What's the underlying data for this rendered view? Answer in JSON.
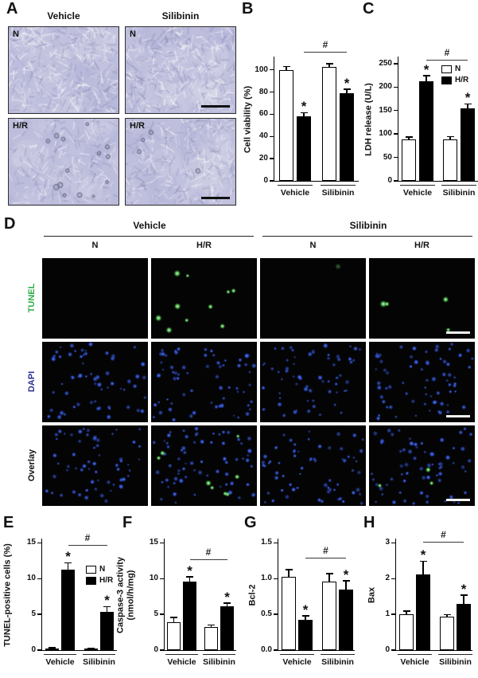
{
  "panels": {
    "A": {
      "letter": "A",
      "col_headers": [
        "Vehicle",
        "Silibinin"
      ],
      "images": [
        {
          "label": "N",
          "col": "Vehicle",
          "density": "confluent",
          "debris": 0,
          "scalebar": false
        },
        {
          "label": "N",
          "col": "Silibinin",
          "density": "confluent",
          "debris": 0,
          "scalebar": true
        },
        {
          "label": "H/R",
          "col": "Vehicle",
          "density": "sparse",
          "debris": 14,
          "scalebar": false
        },
        {
          "label": "H/R",
          "col": "Silibinin",
          "density": "medium",
          "debris": 4,
          "scalebar": true
        }
      ]
    },
    "B": {
      "letter": "B"
    },
    "C": {
      "letter": "C"
    },
    "D": {
      "letter": "D",
      "group_headers": [
        "Vehicle",
        "Silibinin"
      ],
      "col_subheaders": [
        "N",
        "H/R",
        "N",
        "H/R"
      ],
      "rows": [
        {
          "label": "TUNEL",
          "label_color": "#2fae4a",
          "cells": [
            {
              "green": 0,
              "blue": 0
            },
            {
              "green": 10,
              "blue": 0
            },
            {
              "green": 1,
              "blue": 0,
              "faint": true
            },
            {
              "green": 4,
              "blue": 0
            }
          ],
          "scalebar_last": true
        },
        {
          "label": "DAPI",
          "label_color": "#2e3192",
          "cells": [
            {
              "green": 0,
              "blue": 62
            },
            {
              "green": 0,
              "blue": 66
            },
            {
              "green": 0,
              "blue": 64
            },
            {
              "green": 0,
              "blue": 68
            }
          ],
          "scalebar_last": true
        },
        {
          "label": "Overlay",
          "label_color": "#111111",
          "cells": [
            {
              "green": 0,
              "blue": 62
            },
            {
              "green": 8,
              "blue": 66
            },
            {
              "green": 0,
              "blue": 64
            },
            {
              "green": 3,
              "blue": 68
            }
          ],
          "scalebar_last": true
        }
      ]
    },
    "E": {
      "letter": "E"
    },
    "F": {
      "letter": "F"
    },
    "G": {
      "letter": "G"
    },
    "H": {
      "letter": "H"
    }
  },
  "chart_data": [
    {
      "panel": "B",
      "type": "bar",
      "ylabel": "Cell viability (%)",
      "categories": [
        "Vehicle",
        "Silibinin"
      ],
      "series": [
        {
          "name": "N",
          "fill": "#ffffff",
          "values": [
            100,
            103
          ],
          "errors": [
            2.5,
            2
          ],
          "starred": [
            false,
            false
          ]
        },
        {
          "name": "H/R",
          "fill": "#000000",
          "values": [
            58,
            79
          ],
          "errors": [
            3,
            3
          ],
          "starred": [
            true,
            true
          ]
        }
      ],
      "ylim": [
        0,
        112
      ],
      "yticks": [
        0,
        20,
        40,
        60,
        80,
        100
      ],
      "ytick_labels": [
        "0",
        "20",
        "40",
        "60",
        "80",
        "100"
      ],
      "hash_comparison": true,
      "legend": false,
      "grid": false,
      "legend_position": "none"
    },
    {
      "panel": "C",
      "type": "bar",
      "ylabel": "LDH release (U/L)",
      "categories": [
        "Vehicle",
        "Silibinin"
      ],
      "series": [
        {
          "name": "N",
          "fill": "#ffffff",
          "values": [
            88,
            88
          ],
          "errors": [
            4,
            5
          ],
          "starred": [
            false,
            false
          ]
        },
        {
          "name": "H/R",
          "fill": "#000000",
          "values": [
            213,
            155
          ],
          "errors": [
            10,
            8
          ],
          "starred": [
            true,
            true
          ]
        }
      ],
      "ylim": [
        0,
        265
      ],
      "yticks": [
        0,
        50,
        100,
        150,
        200,
        250
      ],
      "ytick_labels": [
        "0",
        "50",
        "100",
        "150",
        "200",
        "250"
      ],
      "hash_comparison": true,
      "legend": true,
      "grid": false,
      "legend_position": "upper-right-inside"
    },
    {
      "panel": "E",
      "type": "bar",
      "ylabel": "TUNEL-positive cells (%)",
      "categories": [
        "Vehicle",
        "Silibinin"
      ],
      "series": [
        {
          "name": "N",
          "fill": "#ffffff",
          "values": [
            0.18,
            0.15
          ],
          "errors": [
            0.05,
            0.05
          ],
          "starred": [
            false,
            false
          ]
        },
        {
          "name": "H/R",
          "fill": "#000000",
          "values": [
            11.3,
            5.3
          ],
          "errors": [
            0.8,
            0.7
          ],
          "starred": [
            true,
            true
          ]
        }
      ],
      "ylim": [
        0,
        15.6
      ],
      "yticks": [
        0,
        5,
        10,
        15
      ],
      "ytick_labels": [
        "0",
        "5",
        "10",
        "15"
      ],
      "hash_comparison": true,
      "legend": true,
      "grid": false,
      "legend_position": "middle-right-inside"
    },
    {
      "panel": "F",
      "type": "bar",
      "ylabel": "Caspase-3 activity",
      "ylabel2": "(nmol/h/mg)",
      "categories": [
        "Vehicle",
        "Silibinin"
      ],
      "series": [
        {
          "name": "N",
          "fill": "#ffffff",
          "values": [
            3.9,
            3.2
          ],
          "errors": [
            0.6,
            0.25
          ],
          "starred": [
            false,
            false
          ]
        },
        {
          "name": "H/R",
          "fill": "#000000",
          "values": [
            9.6,
            6.1
          ],
          "errors": [
            0.55,
            0.4
          ],
          "starred": [
            true,
            true
          ]
        }
      ],
      "ylim": [
        0,
        15.6
      ],
      "yticks": [
        0,
        5,
        10,
        15
      ],
      "ytick_labels": [
        "0",
        "5",
        "10",
        "15"
      ],
      "hash_comparison": true,
      "legend": false,
      "grid": false,
      "legend_position": "none"
    },
    {
      "panel": "G",
      "type": "bar",
      "ylabel": "Bcl-2",
      "categories": [
        "Vehicle",
        "Silibinin"
      ],
      "series": [
        {
          "name": "N",
          "fill": "#ffffff",
          "values": [
            1.02,
            0.96
          ],
          "errors": [
            0.1,
            0.1
          ],
          "starred": [
            false,
            false
          ]
        },
        {
          "name": "H/R",
          "fill": "#000000",
          "values": [
            0.42,
            0.85
          ],
          "errors": [
            0.05,
            0.11
          ],
          "starred": [
            true,
            true
          ]
        }
      ],
      "ylim": [
        0,
        1.56
      ],
      "yticks": [
        0,
        0.5,
        1.0,
        1.5
      ],
      "ytick_labels": [
        "0.0",
        "0.5",
        "1.0",
        "1.5"
      ],
      "hash_comparison": true,
      "legend": false,
      "grid": false,
      "legend_position": "none"
    },
    {
      "panel": "H",
      "type": "bar",
      "ylabel": "Bax",
      "categories": [
        "Vehicle",
        "Silibinin"
      ],
      "series": [
        {
          "name": "N",
          "fill": "#ffffff",
          "values": [
            1.0,
            0.93
          ],
          "errors": [
            0.08,
            0.05
          ],
          "starred": [
            false,
            false
          ]
        },
        {
          "name": "H/R",
          "fill": "#000000",
          "values": [
            2.12,
            1.3
          ],
          "errors": [
            0.35,
            0.22
          ],
          "starred": [
            true,
            true
          ]
        }
      ],
      "ylim": [
        0,
        3.12
      ],
      "yticks": [
        0,
        1,
        2,
        3
      ],
      "ytick_labels": [
        "0",
        "1",
        "2",
        "3"
      ],
      "hash_comparison": true,
      "legend": false,
      "grid": false,
      "legend_position": "none"
    }
  ]
}
